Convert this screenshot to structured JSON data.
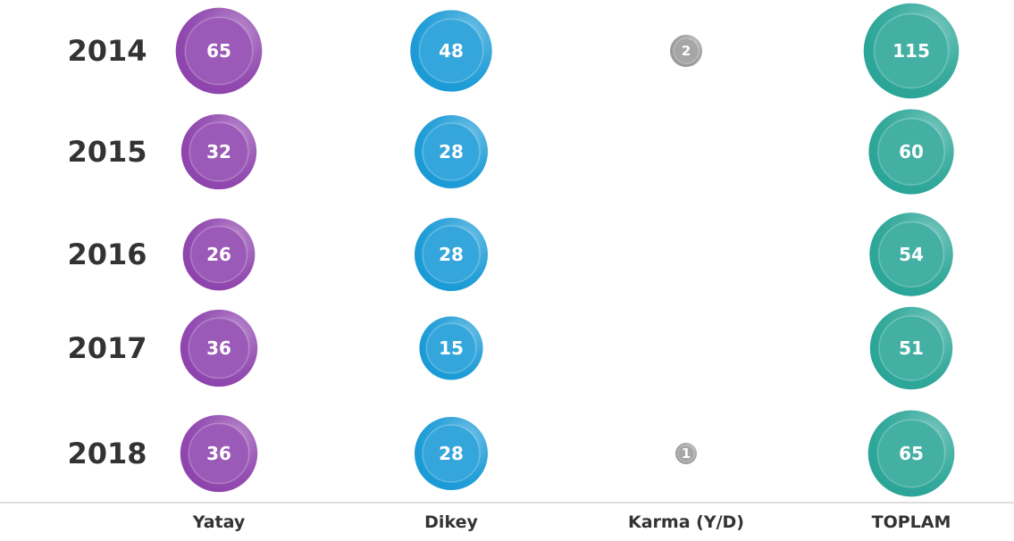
{
  "chart_data": {
    "type": "bubble",
    "categories": [
      "2014",
      "2015",
      "2016",
      "2017",
      "2018"
    ],
    "series": [
      {
        "name": "Yatay",
        "color": "#8e44ad",
        "values": [
          65,
          32,
          26,
          36,
          36
        ]
      },
      {
        "name": "Dikey",
        "color": "#1a9ad6",
        "values": [
          48,
          28,
          28,
          15,
          28
        ]
      },
      {
        "name": "Karma (Y/D)",
        "color": "#9a9a9a",
        "values": [
          2,
          null,
          null,
          null,
          1
        ]
      },
      {
        "name": "TOPLAM",
        "color": "#2aa597",
        "values": [
          115,
          60,
          54,
          51,
          65
        ]
      }
    ]
  }
}
